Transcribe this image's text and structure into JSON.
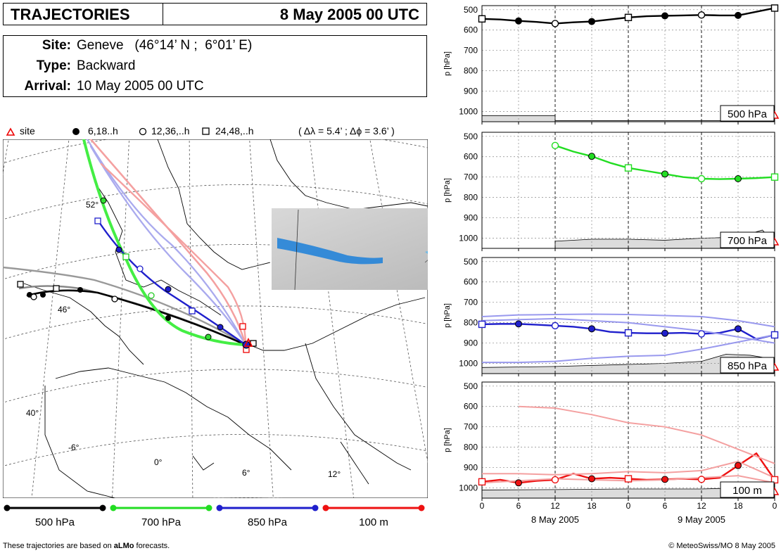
{
  "header": {
    "title": "TRAJECTORIES",
    "date": "8 May 2005 00 UTC"
  },
  "info": {
    "site_label": "Site:",
    "site_value": "Geneve   (46°14’ N ;  6°01’ E)",
    "type_label": "Type:",
    "type_value": "Backward",
    "arrival_label": "Arrival:",
    "arrival_value": "10 May 2005 00 UTC"
  },
  "map_legend": {
    "site": "site",
    "m6": "6,18..h",
    "m12": "12,36,..h",
    "m24": "24,48,..h",
    "resolution": "( Δλ = 5.4’ ; Δϕ = 3.6’ )"
  },
  "map_labels": {
    "lat52": "52°",
    "lat46": "46°",
    "lat40": "40°",
    "lonm6": "-6°",
    "lon0": "0°",
    "lon6": "6°",
    "lon12": "12°"
  },
  "bottom_legend": [
    {
      "label": "500 hPa",
      "color": "#000000"
    },
    {
      "label": "700 hPa",
      "color": "#22dd22"
    },
    {
      "label": "850 hPa",
      "color": "#1f1fcc"
    },
    {
      "label": "100 m",
      "color": "#ee1111"
    }
  ],
  "footer": {
    "left_prefix": "These trajectories are based on ",
    "left_bold": "aLMo",
    "left_suffix": " forecasts.",
    "right": "© MeteoSwiss/MO  8 May 2005"
  },
  "chart_data": [
    {
      "type": "line",
      "panel_label": "500 hPa",
      "ylabel": "p [hPa]",
      "y_inverted": true,
      "ylim": [
        1050,
        480
      ],
      "yticks": [
        500,
        600,
        700,
        800,
        900,
        1000
      ],
      "xlim": [
        0,
        48
      ],
      "xticks": [
        "0",
        "6",
        "12",
        "18",
        "0",
        "6",
        "12",
        "18",
        "0"
      ],
      "series": [
        {
          "color": "#000000",
          "x": [
            0,
            3,
            6,
            9,
            12,
            15,
            18,
            21,
            24,
            27,
            30,
            33,
            36,
            39,
            42,
            45,
            48
          ],
          "y": [
            545,
            548,
            555,
            560,
            568,
            562,
            558,
            548,
            538,
            532,
            530,
            528,
            526,
            528,
            528,
            510,
            492
          ]
        }
      ],
      "terrain": {
        "x": [
          0,
          12,
          12,
          48
        ],
        "y": [
          1020,
          1020,
          1045,
          1045
        ]
      }
    },
    {
      "type": "line",
      "panel_label": "700 hPa",
      "ylabel": "p [hPa]",
      "y_inverted": true,
      "ylim": [
        1050,
        480
      ],
      "yticks": [
        500,
        600,
        700,
        800,
        900,
        1000
      ],
      "xlim": [
        0,
        48
      ],
      "xticks": [
        "0",
        "6",
        "12",
        "18",
        "0",
        "6",
        "12",
        "18",
        "0"
      ],
      "series": [
        {
          "color": "#22dd22",
          "x": [
            12,
            15,
            18,
            21,
            24,
            27,
            30,
            33,
            36,
            39,
            42,
            45,
            48
          ],
          "y": [
            545,
            575,
            598,
            630,
            655,
            670,
            685,
            700,
            708,
            710,
            708,
            705,
            700
          ]
        }
      ],
      "terrain": {
        "x": [
          12,
          18,
          24,
          30,
          36,
          42,
          46,
          48
        ],
        "y": [
          1015,
          1005,
          1005,
          1010,
          1000,
          995,
          960,
          1030
        ]
      }
    },
    {
      "type": "line",
      "panel_label": "850 hPa",
      "ylabel": "p [hPa]",
      "y_inverted": true,
      "ylim": [
        1050,
        480
      ],
      "yticks": [
        500,
        600,
        700,
        800,
        900,
        1000
      ],
      "xlim": [
        0,
        48
      ],
      "xticks": [
        "0",
        "6",
        "12",
        "18",
        "0",
        "6",
        "12",
        "18",
        "0"
      ],
      "series": [
        {
          "color": "#1f1fcc",
          "x": [
            0,
            3,
            6,
            9,
            12,
            15,
            18,
            21,
            24,
            27,
            30,
            33,
            36,
            39,
            42,
            45,
            48
          ],
          "y": [
            808,
            806,
            806,
            810,
            815,
            820,
            830,
            845,
            850,
            852,
            852,
            850,
            855,
            850,
            830,
            880,
            860
          ]
        },
        {
          "color": "#9999ee",
          "x": [
            0,
            6,
            12,
            18,
            24,
            30,
            36,
            42,
            48
          ],
          "y": [
            770,
            762,
            760,
            758,
            760,
            765,
            770,
            790,
            820
          ]
        },
        {
          "color": "#9999ee",
          "x": [
            0,
            6,
            12,
            18,
            24,
            30,
            36,
            42,
            48
          ],
          "y": [
            790,
            785,
            780,
            790,
            800,
            820,
            840,
            870,
            900
          ]
        },
        {
          "color": "#9999ee",
          "x": [
            0,
            6,
            12,
            18,
            24,
            30,
            36,
            42,
            48
          ],
          "y": [
            995,
            995,
            990,
            975,
            965,
            960,
            930,
            895,
            860
          ]
        }
      ],
      "terrain": {
        "x": [
          0,
          12,
          24,
          30,
          36,
          40,
          44,
          48
        ],
        "y": [
          1020,
          1015,
          1005,
          1000,
          990,
          955,
          960,
          980
        ]
      }
    },
    {
      "type": "line",
      "panel_label": "100 m",
      "ylabel": "p [hPa]",
      "y_inverted": true,
      "ylim": [
        1050,
        480
      ],
      "yticks": [
        500,
        600,
        700,
        800,
        900,
        1000
      ],
      "xlim": [
        0,
        48
      ],
      "xticks": [
        "0",
        "6",
        "12",
        "18",
        "0",
        "6",
        "12",
        "18",
        "0"
      ],
      "xdates": [
        "8 May 2005",
        "9 May 2005"
      ],
      "series": [
        {
          "color": "#ee1111",
          "x": [
            0,
            3,
            6,
            9,
            12,
            15,
            18,
            21,
            24,
            27,
            30,
            33,
            36,
            39,
            42,
            45,
            48
          ],
          "y": [
            970,
            960,
            975,
            965,
            960,
            930,
            955,
            950,
            955,
            960,
            958,
            955,
            958,
            950,
            890,
            830,
            960
          ]
        },
        {
          "color": "#f4a0a0",
          "x": [
            6,
            12,
            18,
            24,
            30,
            36,
            42,
            48
          ],
          "y": [
            600,
            608,
            640,
            680,
            700,
            740,
            810,
            880
          ]
        },
        {
          "color": "#f4a0a0",
          "x": [
            0,
            6,
            12,
            18,
            24,
            30,
            36,
            42,
            48
          ],
          "y": [
            930,
            930,
            935,
            930,
            920,
            925,
            915,
            870,
            950
          ]
        },
        {
          "color": "#f4a0a0",
          "x": [
            0,
            6,
            12,
            18,
            24,
            30,
            36,
            42,
            48
          ],
          "y": [
            975,
            965,
            955,
            960,
            965,
            960,
            950,
            940,
            975
          ]
        }
      ],
      "terrain": {
        "x": [
          0,
          12,
          24,
          36,
          42,
          48
        ],
        "y": [
          1010,
          1008,
          1005,
          1005,
          1000,
          1000
        ]
      }
    }
  ]
}
